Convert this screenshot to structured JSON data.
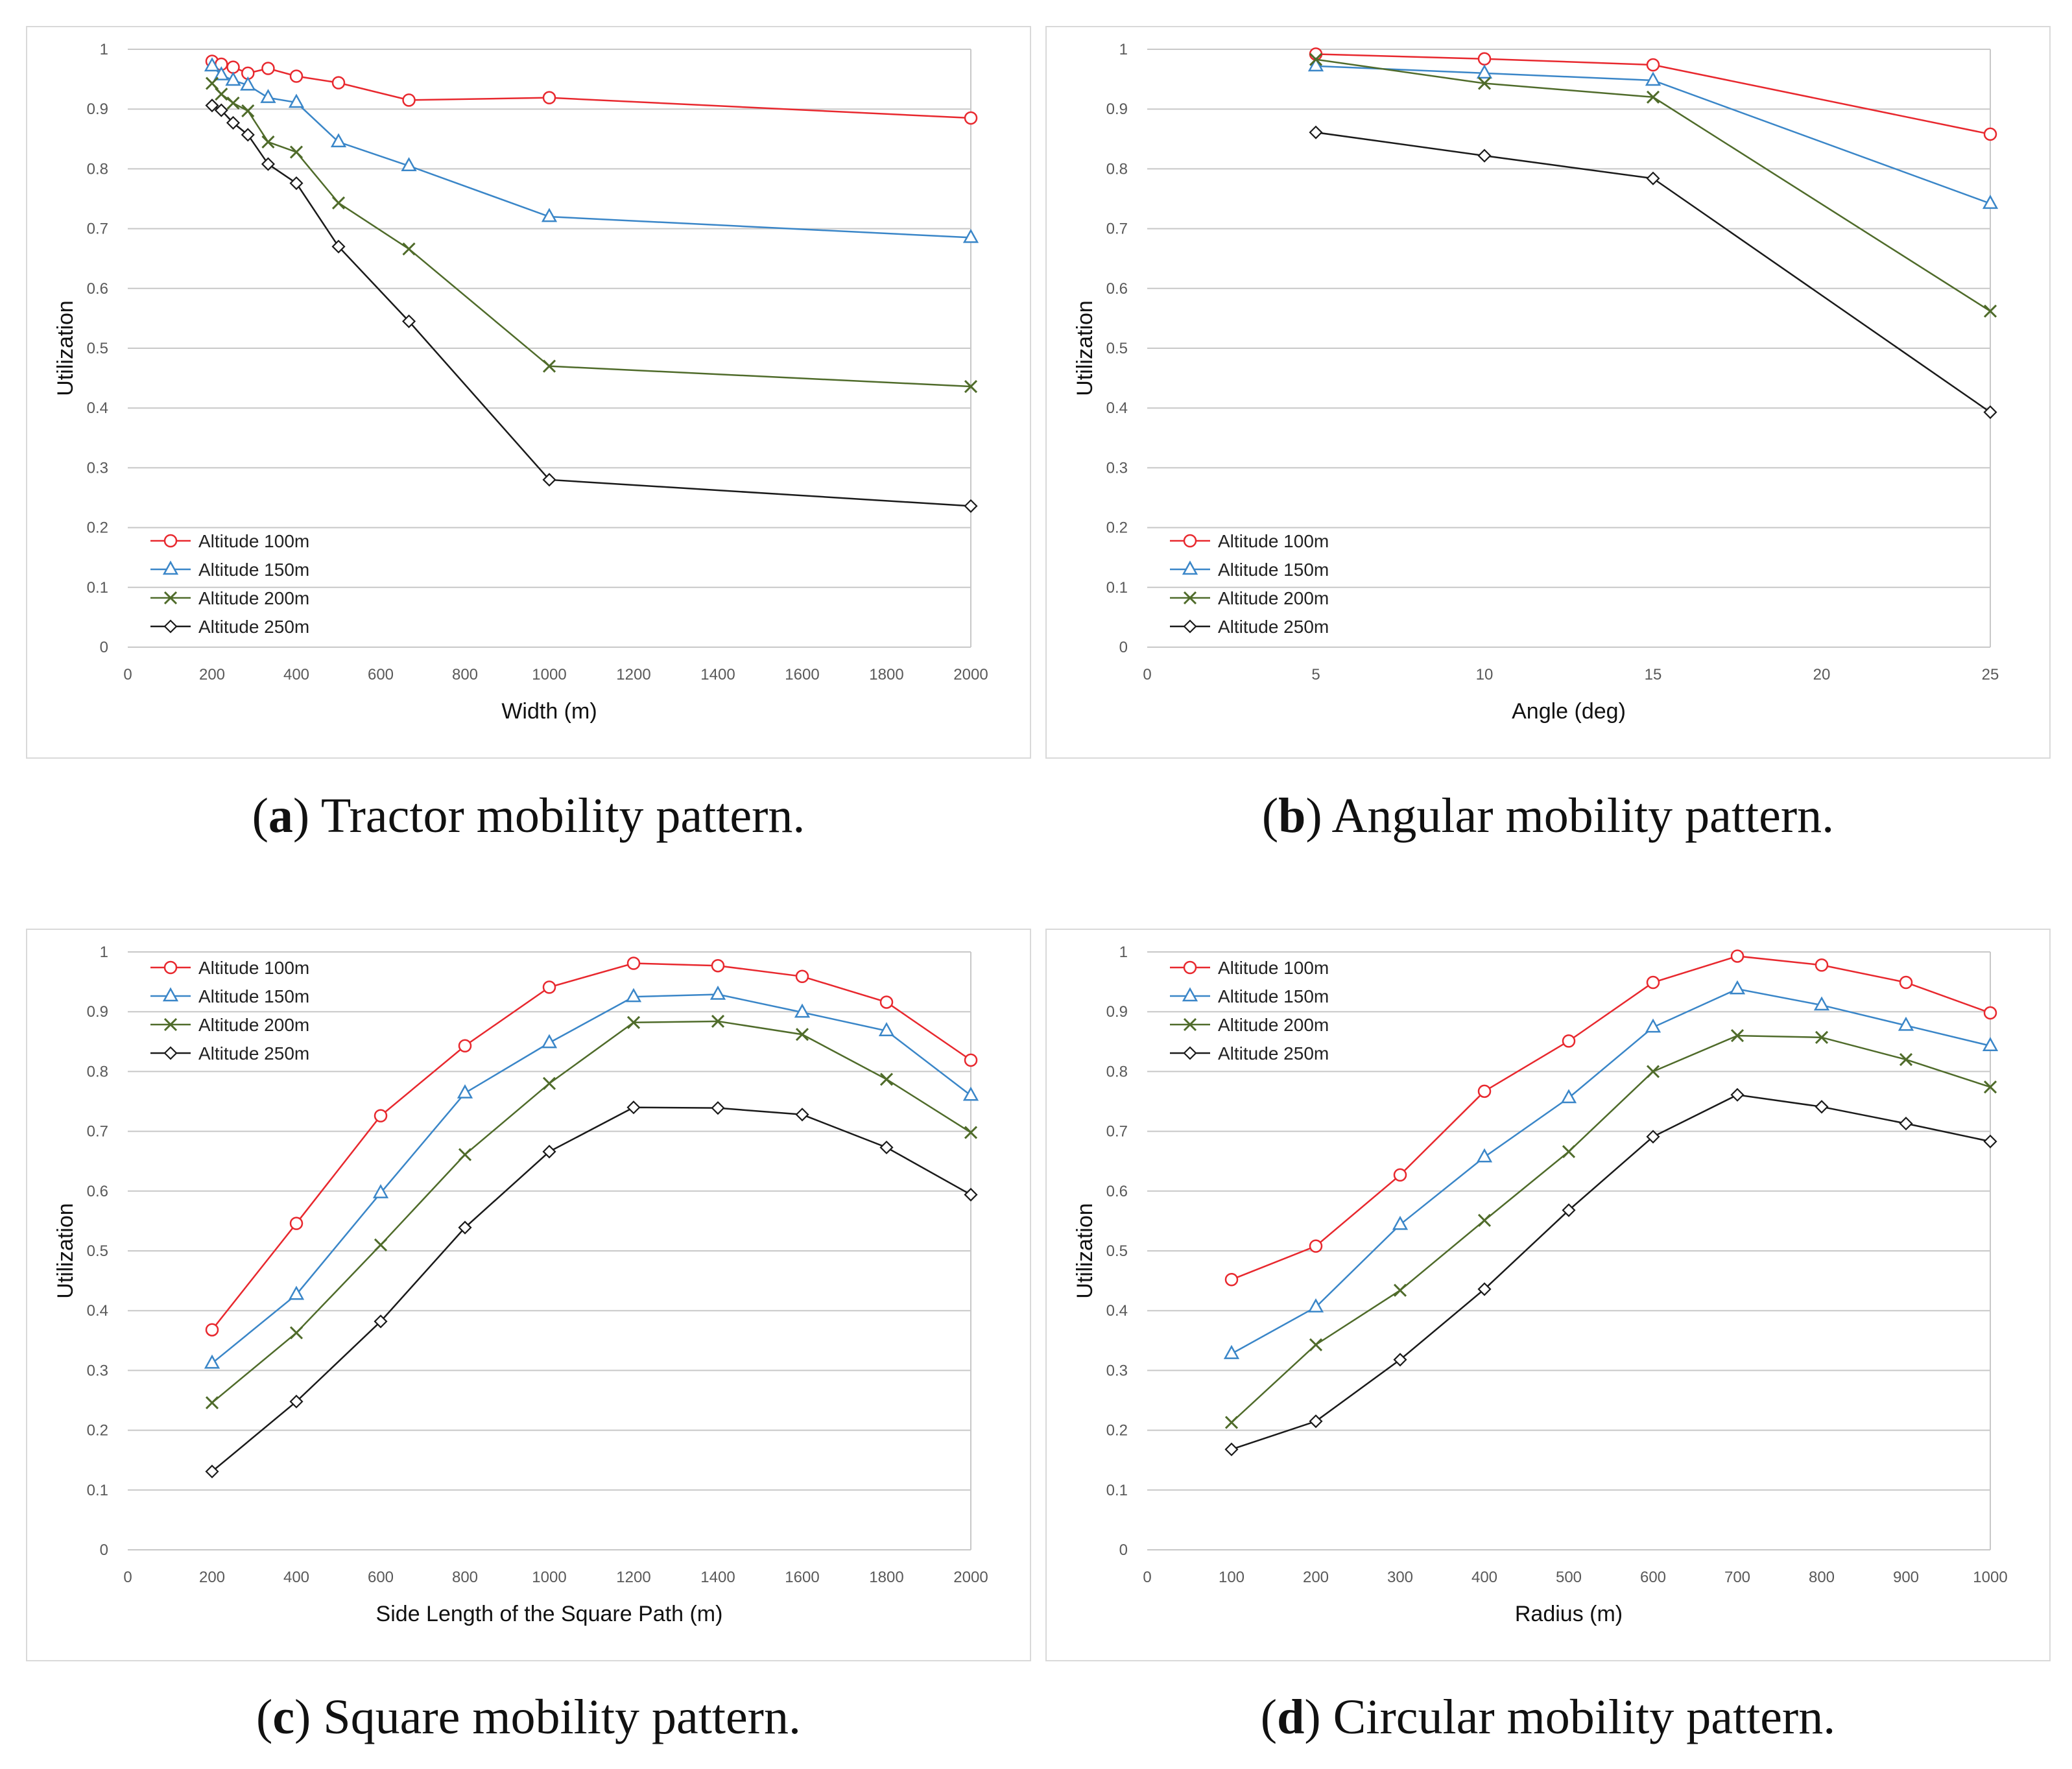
{
  "colors": {
    "altitude_100": "#e8282e",
    "altitude_150": "#3a86c8",
    "altitude_200": "#4f6b2a",
    "altitude_250": "#1a1a1a",
    "grid": "#c8c8c8",
    "axis_text": "#595959"
  },
  "captions": [
    {
      "letter": "a",
      "text": "Tractor mobility pattern."
    },
    {
      "letter": "b",
      "text": "Angular mobility pattern."
    },
    {
      "letter": "c",
      "text": "Square mobility pattern."
    },
    {
      "letter": "d",
      "text": "Circular mobility pattern."
    }
  ],
  "chart_data": [
    {
      "type": "line",
      "xlabel": "Width (m)",
      "ylabel": "Utilization",
      "xlim": [
        0,
        2000
      ],
      "xticks": [
        0,
        200,
        400,
        600,
        800,
        1000,
        1200,
        1400,
        1600,
        1800,
        2000
      ],
      "ylim": [
        0,
        1
      ],
      "yticks": [
        "0",
        "0.1",
        "0.2",
        "0.3",
        "0.4",
        "0.5",
        "0.6",
        "0.7",
        "0.8",
        "0.9",
        "1"
      ],
      "grid": "horizontal",
      "legend": "bottom-left",
      "series": [
        {
          "name": "Altitude 100m",
          "marker": "circle",
          "x": [
            200,
            222,
            250,
            285,
            333,
            400,
            500,
            667,
            1000,
            2000
          ],
          "y": [
            0.98,
            0.975,
            0.97,
            0.96,
            0.968,
            0.955,
            0.944,
            0.915,
            0.919,
            0.885
          ]
        },
        {
          "name": "Altitude 150m",
          "marker": "triangle",
          "x": [
            200,
            222,
            250,
            285,
            333,
            400,
            500,
            667,
            1000,
            2000
          ],
          "y": [
            0.972,
            0.957,
            0.948,
            0.94,
            0.919,
            0.911,
            0.845,
            0.805,
            0.72,
            0.685
          ]
        },
        {
          "name": "Altitude 200m",
          "marker": "x",
          "x": [
            200,
            222,
            250,
            285,
            333,
            400,
            500,
            667,
            1000,
            2000
          ],
          "y": [
            0.943,
            0.925,
            0.91,
            0.897,
            0.845,
            0.828,
            0.743,
            0.666,
            0.47,
            0.436
          ]
        },
        {
          "name": "Altitude 250m",
          "marker": "diamond",
          "x": [
            200,
            222,
            250,
            285,
            333,
            400,
            500,
            667,
            1000,
            2000
          ],
          "y": [
            0.906,
            0.898,
            0.877,
            0.857,
            0.808,
            0.776,
            0.67,
            0.545,
            0.28,
            0.236
          ]
        }
      ]
    },
    {
      "type": "line",
      "xlabel": "Angle (deg)",
      "ylabel": "Utilization",
      "xlim": [
        0,
        25
      ],
      "xticks": [
        0,
        5,
        10,
        15,
        20,
        25
      ],
      "ylim": [
        0,
        1
      ],
      "yticks": [
        "0",
        "0.1",
        "0.2",
        "0.3",
        "0.4",
        "0.5",
        "0.6",
        "0.7",
        "0.8",
        "0.9",
        "1"
      ],
      "grid": "horizontal",
      "legend": "bottom-left",
      "series": [
        {
          "name": "Altitude 100m",
          "marker": "circle",
          "x": [
            5,
            10,
            15,
            25
          ],
          "y": [
            0.992,
            0.984,
            0.974,
            0.858
          ]
        },
        {
          "name": "Altitude 150m",
          "marker": "triangle",
          "x": [
            5,
            10,
            15,
            25
          ],
          "y": [
            0.972,
            0.96,
            0.948,
            0.742
          ]
        },
        {
          "name": "Altitude 200m",
          "marker": "x",
          "x": [
            5,
            10,
            15,
            25
          ],
          "y": [
            0.983,
            0.943,
            0.92,
            0.562
          ]
        },
        {
          "name": "Altitude 250m",
          "marker": "diamond",
          "x": [
            5,
            10,
            15,
            25
          ],
          "y": [
            0.861,
            0.822,
            0.784,
            0.393
          ]
        }
      ]
    },
    {
      "type": "line",
      "xlabel": "Side Length of the Square Path (m)",
      "ylabel": "Utilization",
      "xlim": [
        0,
        2000
      ],
      "xticks": [
        0,
        200,
        400,
        600,
        800,
        1000,
        1200,
        1400,
        1600,
        1800,
        2000
      ],
      "ylim": [
        0,
        1
      ],
      "yticks": [
        "0",
        "0.1",
        "0.2",
        "0.3",
        "0.4",
        "0.5",
        "0.6",
        "0.7",
        "0.8",
        "0.9",
        "1"
      ],
      "grid": "horizontal",
      "legend": "top-left",
      "series": [
        {
          "name": "Altitude 100m",
          "marker": "circle",
          "x": [
            200,
            400,
            600,
            800,
            1000,
            1200,
            1400,
            1600,
            1800,
            2000
          ],
          "y": [
            0.368,
            0.546,
            0.726,
            0.843,
            0.941,
            0.981,
            0.977,
            0.959,
            0.916,
            0.819
          ]
        },
        {
          "name": "Altitude 150m",
          "marker": "triangle",
          "x": [
            200,
            400,
            600,
            800,
            1000,
            1200,
            1400,
            1600,
            1800,
            2000
          ],
          "y": [
            0.312,
            0.427,
            0.597,
            0.764,
            0.848,
            0.925,
            0.929,
            0.899,
            0.868,
            0.76
          ]
        },
        {
          "name": "Altitude 200m",
          "marker": "x",
          "x": [
            200,
            400,
            600,
            800,
            1000,
            1200,
            1400,
            1600,
            1800,
            2000
          ],
          "y": [
            0.246,
            0.363,
            0.51,
            0.661,
            0.78,
            0.882,
            0.884,
            0.862,
            0.787,
            0.698
          ]
        },
        {
          "name": "Altitude 250m",
          "marker": "diamond",
          "x": [
            200,
            400,
            600,
            800,
            1000,
            1200,
            1400,
            1600,
            1800,
            2000
          ],
          "y": [
            0.131,
            0.248,
            0.382,
            0.539,
            0.666,
            0.74,
            0.739,
            0.728,
            0.673,
            0.594
          ]
        }
      ]
    },
    {
      "type": "line",
      "xlabel": "Radius (m)",
      "ylabel": "Utilization",
      "xlim": [
        0,
        1000
      ],
      "xticks": [
        0,
        100,
        200,
        300,
        400,
        500,
        600,
        700,
        800,
        900,
        1000
      ],
      "ylim": [
        0,
        1
      ],
      "yticks": [
        "0",
        "0.1",
        "0.2",
        "0.3",
        "0.4",
        "0.5",
        "0.6",
        "0.7",
        "0.8",
        "0.9",
        "1"
      ],
      "grid": "horizontal",
      "legend": "top-left",
      "series": [
        {
          "name": "Altitude 100m",
          "marker": "circle",
          "x": [
            100,
            200,
            300,
            400,
            500,
            600,
            700,
            800,
            900,
            1000
          ],
          "y": [
            0.452,
            0.508,
            0.627,
            0.767,
            0.851,
            0.949,
            0.993,
            0.978,
            0.949,
            0.898
          ]
        },
        {
          "name": "Altitude 150m",
          "marker": "triangle",
          "x": [
            100,
            200,
            300,
            400,
            500,
            600,
            700,
            800,
            900,
            1000
          ],
          "y": [
            0.328,
            0.406,
            0.544,
            0.657,
            0.756,
            0.874,
            0.938,
            0.911,
            0.877,
            0.843
          ]
        },
        {
          "name": "Altitude 200m",
          "marker": "x",
          "x": [
            100,
            200,
            300,
            400,
            500,
            600,
            700,
            800,
            900,
            1000
          ],
          "y": [
            0.213,
            0.343,
            0.434,
            0.551,
            0.666,
            0.8,
            0.86,
            0.857,
            0.82,
            0.774
          ]
        },
        {
          "name": "Altitude 250m",
          "marker": "diamond",
          "x": [
            100,
            200,
            300,
            400,
            500,
            600,
            700,
            800,
            900,
            1000
          ],
          "y": [
            0.168,
            0.215,
            0.318,
            0.436,
            0.568,
            0.691,
            0.761,
            0.741,
            0.713,
            0.683
          ]
        }
      ]
    }
  ]
}
